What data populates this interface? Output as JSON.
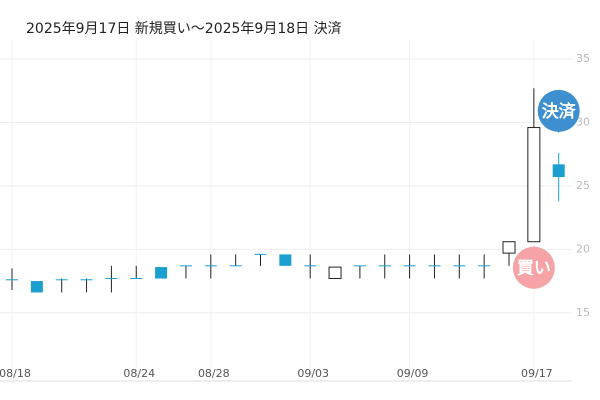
{
  "chart_data": {
    "type": "candlestick",
    "title": "2025年9月17日 新規買い〜2025年9月18日 決済",
    "categories": [
      "08/18",
      null,
      null,
      null,
      null,
      "08/24",
      null,
      null,
      "08/28",
      null,
      null,
      null,
      "09/03",
      null,
      null,
      null,
      "09/09",
      null,
      null,
      null,
      null,
      "09/17",
      null
    ],
    "open": [
      17.6,
      17.5,
      17.6,
      17.6,
      17.7,
      17.7,
      18.6,
      18.7,
      18.7,
      18.7,
      19.6,
      19.6,
      18.7,
      17.7,
      18.7,
      18.7,
      18.7,
      18.7,
      18.7,
      18.7,
      19.7,
      20.6,
      26.7
    ],
    "high": [
      18.5,
      17.5,
      17.7,
      17.7,
      18.7,
      18.7,
      18.6,
      18.7,
      19.6,
      19.6,
      19.6,
      19.6,
      19.6,
      18.6,
      18.7,
      19.6,
      19.6,
      19.6,
      19.6,
      19.6,
      20.6,
      32.7,
      27.6
    ],
    "low": [
      16.8,
      16.6,
      16.6,
      16.6,
      16.6,
      17.7,
      17.7,
      17.7,
      17.7,
      18.7,
      18.7,
      18.7,
      17.7,
      17.7,
      17.7,
      17.7,
      17.7,
      17.7,
      17.7,
      17.7,
      18.7,
      20.6,
      23.8
    ],
    "close": [
      17.6,
      16.6,
      17.6,
      17.6,
      17.7,
      17.7,
      17.7,
      18.7,
      18.7,
      18.7,
      19.6,
      18.7,
      18.7,
      18.6,
      18.7,
      18.7,
      18.7,
      18.7,
      18.7,
      18.7,
      20.6,
      29.6,
      25.7
    ],
    "up_color": "#ffffff",
    "down_color": "#1a9fcf",
    "ylim": [
      9.7,
      36.5
    ],
    "yticks": [
      15,
      20,
      25,
      30,
      35
    ],
    "grid": true,
    "annotations": [
      {
        "text": "買い",
        "color": "#f5a3a6"
      },
      {
        "text": "決済",
        "color": "#3d8fcf"
      }
    ]
  }
}
